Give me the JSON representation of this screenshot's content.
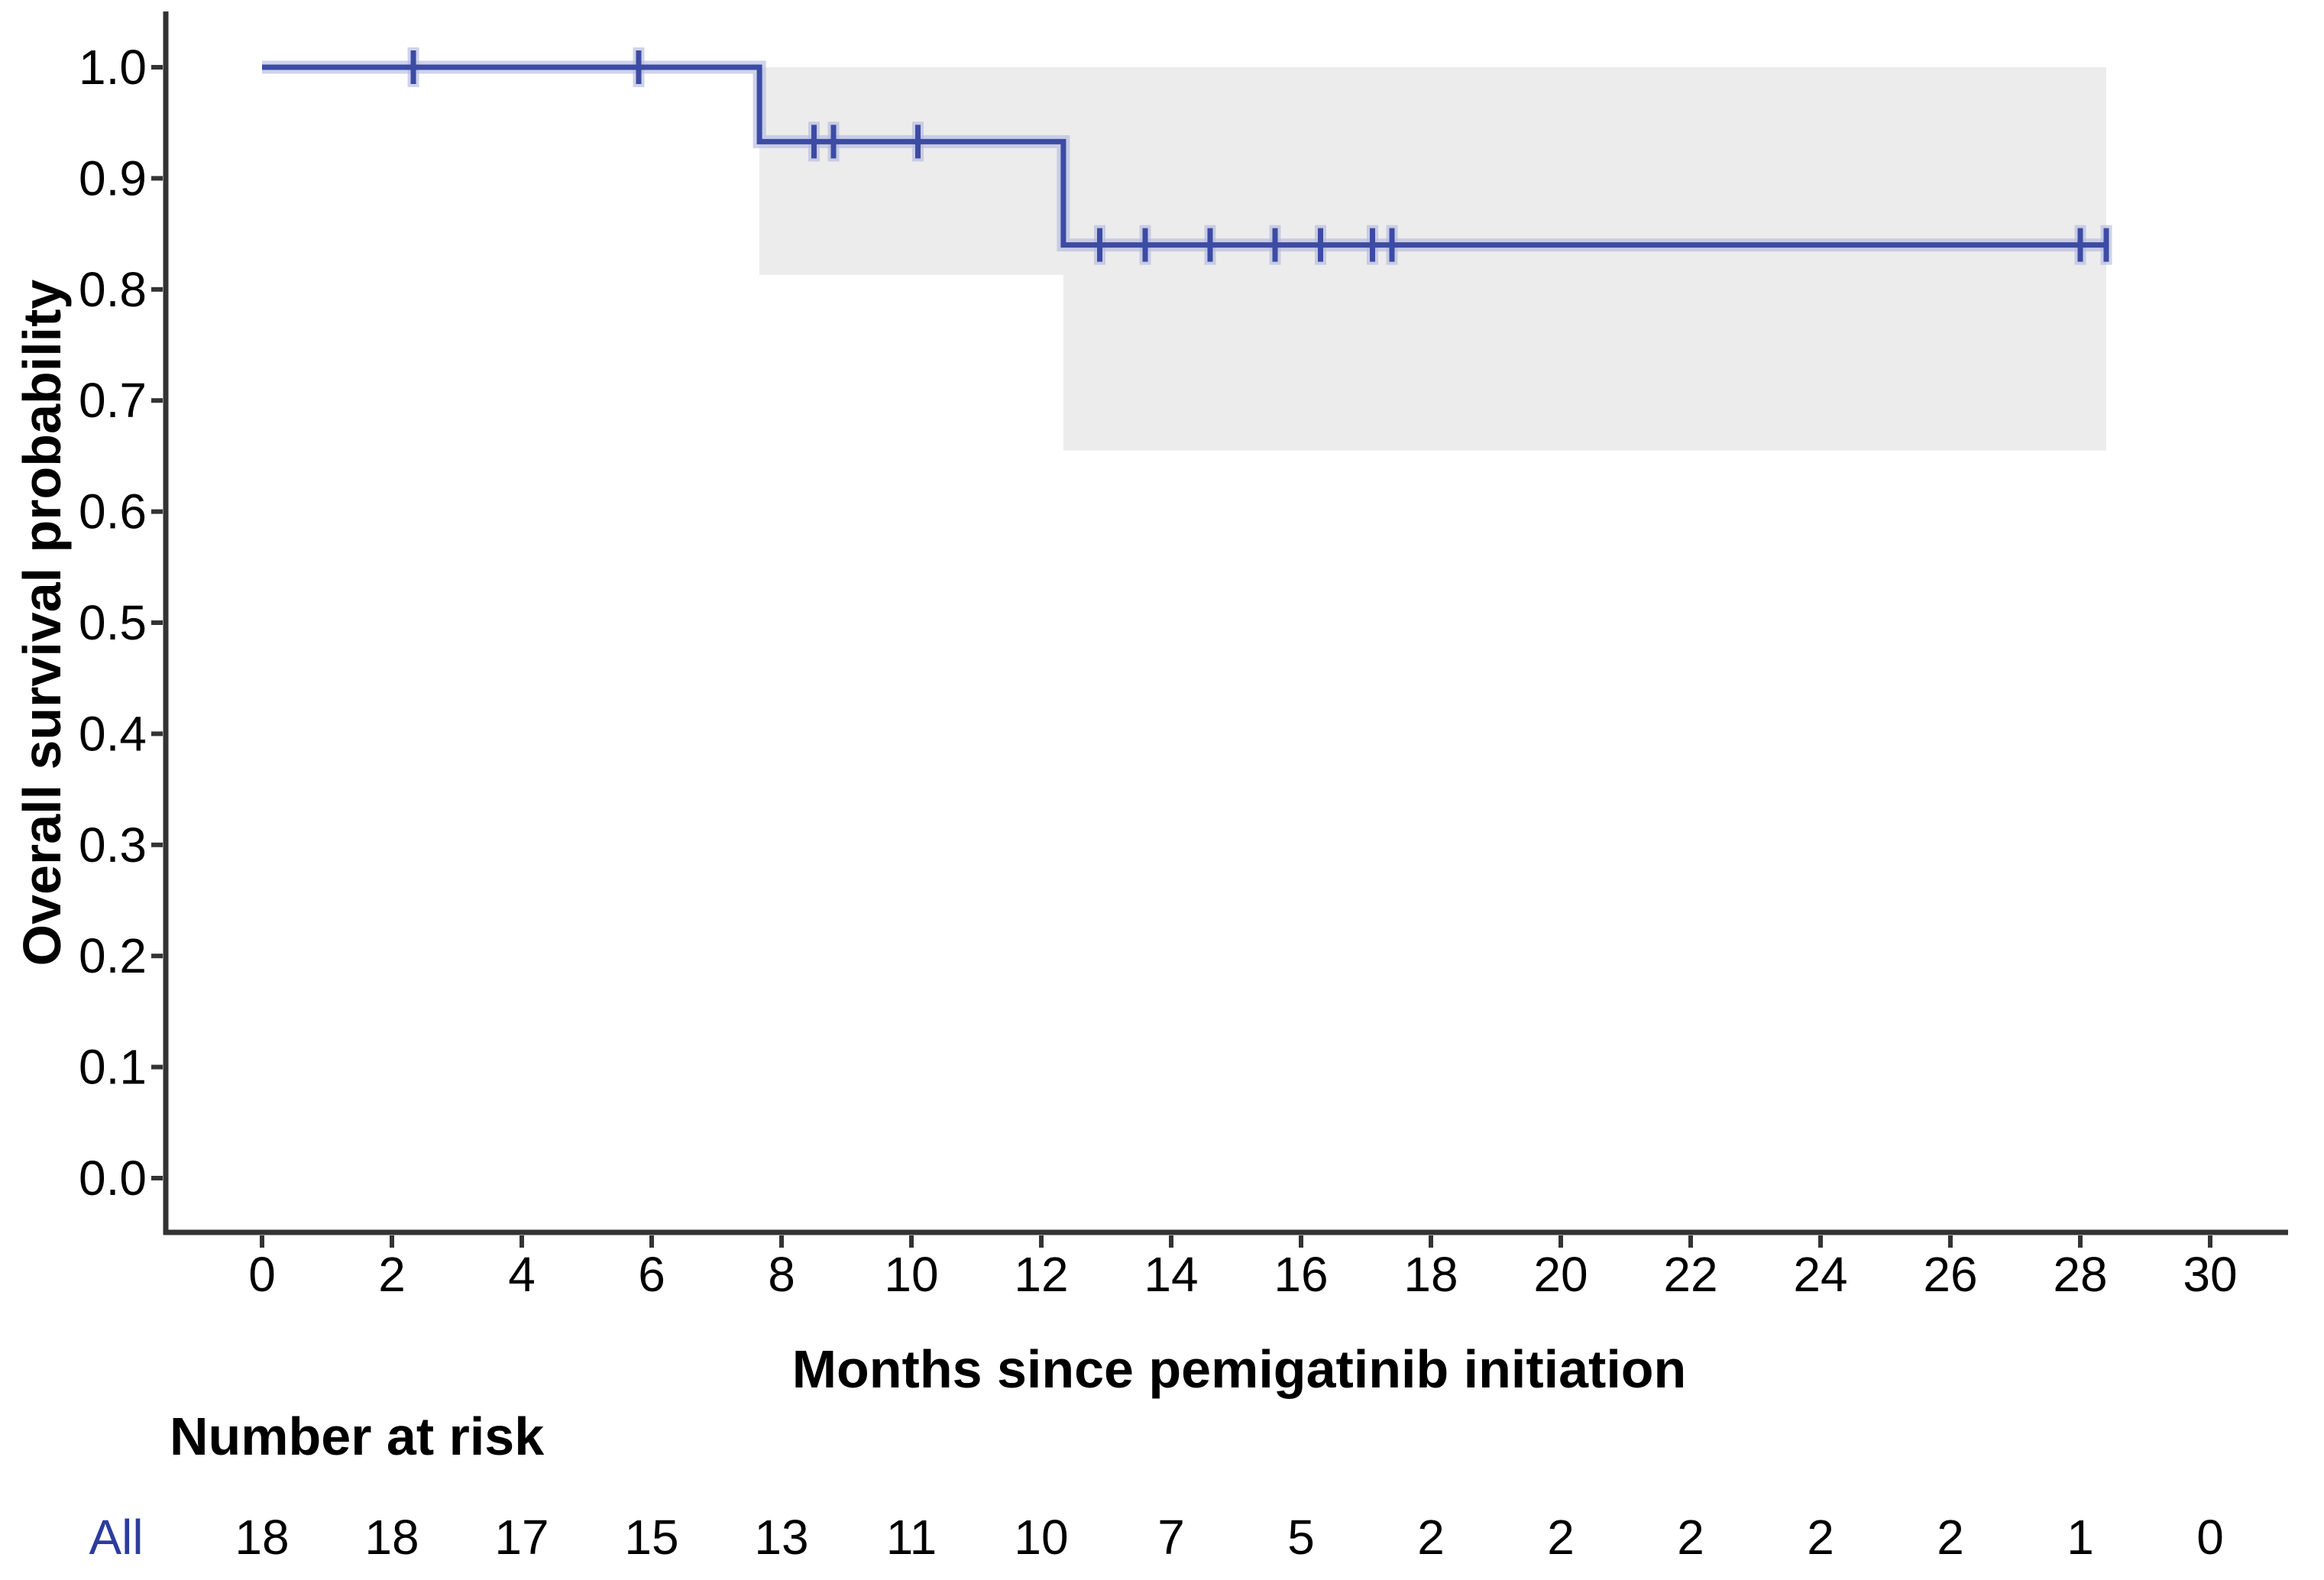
{
  "colors": {
    "curve": "#3c4ba3",
    "curve_halo": "#b6bcdf",
    "ci_band": "#ececec",
    "axis": "#333333",
    "text": "#000000",
    "risk_group_blue": "#2c3c9e",
    "background": "#ffffff"
  },
  "chart_data": {
    "type": "line",
    "subtype": "kaplan-meier-step",
    "title": "",
    "xlabel": "Months since pemigatinib initiation",
    "ylabel": "Overall survival probability",
    "xlim": [
      -1.5,
      31.2
    ],
    "ylim": [
      -0.05,
      1.05
    ],
    "grid": false,
    "legend_position": "none",
    "x_ticks": [
      0,
      2,
      4,
      6,
      8,
      10,
      12,
      14,
      16,
      18,
      20,
      22,
      24,
      26,
      28,
      30
    ],
    "x_tick_labels": [
      "0",
      "2",
      "4",
      "6",
      "8",
      "10",
      "12",
      "14",
      "16",
      "18",
      "20",
      "22",
      "24",
      "26",
      "28",
      "30"
    ],
    "y_ticks": [
      0.0,
      0.1,
      0.2,
      0.3,
      0.4,
      0.5,
      0.6,
      0.7,
      0.8,
      0.9,
      1.0
    ],
    "y_tick_labels": [
      "0.0",
      "0.1",
      "0.2",
      "0.3",
      "0.4",
      "0.5",
      "0.6",
      "0.7",
      "0.8",
      "0.9",
      "1.0"
    ],
    "series": [
      {
        "name": "All",
        "steps": [
          {
            "t_start": 0.0,
            "t_end": 7.66,
            "survival": 1.0
          },
          {
            "t_start": 7.66,
            "t_end": 12.34,
            "survival": 0.933
          },
          {
            "t_start": 12.34,
            "t_end": 28.4,
            "survival": 0.84
          }
        ],
        "censor_marks": [
          {
            "time": 2.33,
            "survival": 1.0
          },
          {
            "time": 5.8,
            "survival": 1.0
          },
          {
            "time": 8.5,
            "survival": 0.933
          },
          {
            "time": 8.8,
            "survival": 0.933
          },
          {
            "time": 10.1,
            "survival": 0.933
          },
          {
            "time": 12.9,
            "survival": 0.84
          },
          {
            "time": 13.6,
            "survival": 0.84
          },
          {
            "time": 14.6,
            "survival": 0.84
          },
          {
            "time": 15.6,
            "survival": 0.84
          },
          {
            "time": 16.3,
            "survival": 0.84
          },
          {
            "time": 17.1,
            "survival": 0.84
          },
          {
            "time": 17.4,
            "survival": 0.84
          },
          {
            "time": 28.0,
            "survival": 0.84
          },
          {
            "time": 28.4,
            "survival": 0.84
          }
        ],
        "confidence_band": [
          {
            "t_start": 7.66,
            "t_end": 12.34,
            "upper": 1.0,
            "lower": 0.813
          },
          {
            "t_start": 12.34,
            "t_end": 28.4,
            "upper": 1.0,
            "lower": 0.655
          }
        ]
      }
    ],
    "number_at_risk": {
      "title": "Number at risk",
      "group": "All",
      "times": [
        0,
        2,
        4,
        6,
        8,
        10,
        12,
        14,
        16,
        18,
        20,
        22,
        24,
        26,
        28,
        30
      ],
      "counts": [
        18,
        18,
        17,
        15,
        13,
        11,
        10,
        7,
        5,
        2,
        2,
        2,
        2,
        2,
        1,
        0
      ]
    }
  }
}
